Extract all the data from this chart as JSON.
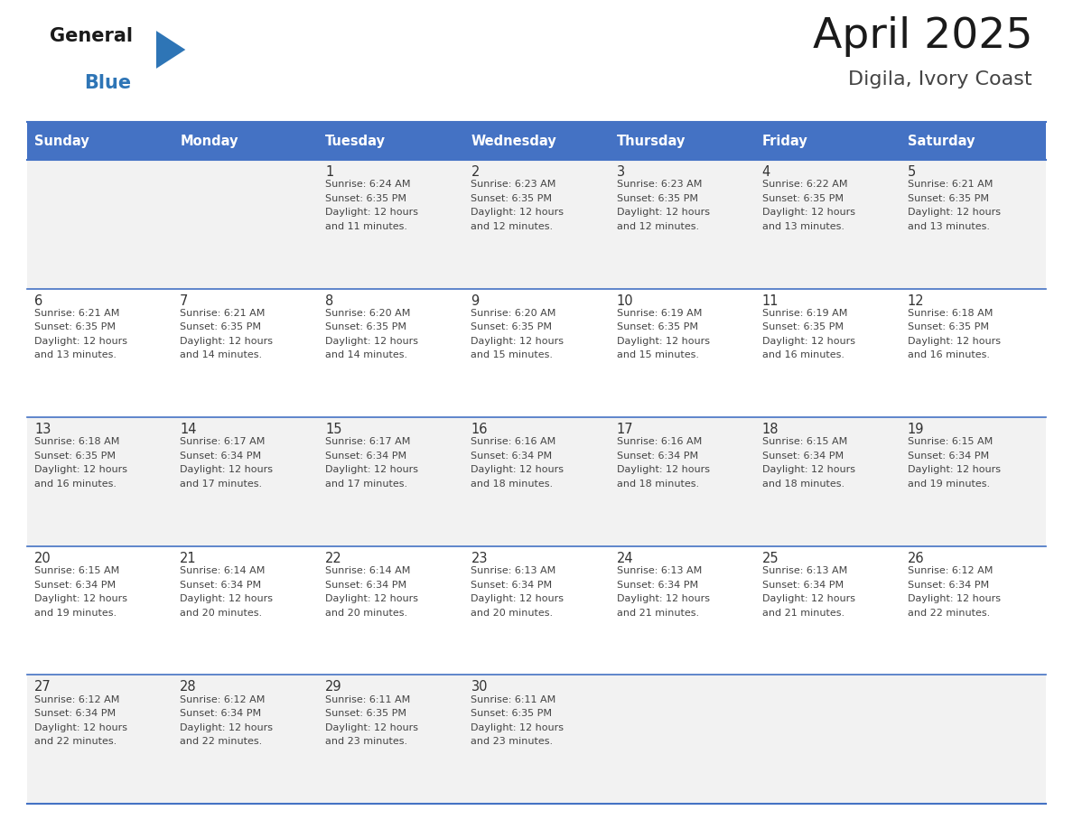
{
  "title": "April 2025",
  "subtitle": "Digila, Ivory Coast",
  "days_of_week": [
    "Sunday",
    "Monday",
    "Tuesday",
    "Wednesday",
    "Thursday",
    "Friday",
    "Saturday"
  ],
  "header_bg": "#4472C4",
  "header_text": "#FFFFFF",
  "cell_bg_even": "#F2F2F2",
  "cell_bg_odd": "#FFFFFF",
  "day_num_color": "#333333",
  "text_color": "#444444",
  "grid_color": "#4472C4",
  "row_line_color": "#4472C4",
  "title_color": "#1a1a1a",
  "subtitle_color": "#444444",
  "logo_general_color": "#1a1a1a",
  "logo_blue_color": "#2E75B6",
  "calendar": [
    [
      null,
      null,
      {
        "day": 1,
        "sunrise": "6:24 AM",
        "sunset": "6:35 PM",
        "daylight": "12 hours and 11 minutes."
      },
      {
        "day": 2,
        "sunrise": "6:23 AM",
        "sunset": "6:35 PM",
        "daylight": "12 hours and 12 minutes."
      },
      {
        "day": 3,
        "sunrise": "6:23 AM",
        "sunset": "6:35 PM",
        "daylight": "12 hours and 12 minutes."
      },
      {
        "day": 4,
        "sunrise": "6:22 AM",
        "sunset": "6:35 PM",
        "daylight": "12 hours and 13 minutes."
      },
      {
        "day": 5,
        "sunrise": "6:21 AM",
        "sunset": "6:35 PM",
        "daylight": "12 hours and 13 minutes."
      }
    ],
    [
      {
        "day": 6,
        "sunrise": "6:21 AM",
        "sunset": "6:35 PM",
        "daylight": "12 hours and 13 minutes."
      },
      {
        "day": 7,
        "sunrise": "6:21 AM",
        "sunset": "6:35 PM",
        "daylight": "12 hours and 14 minutes."
      },
      {
        "day": 8,
        "sunrise": "6:20 AM",
        "sunset": "6:35 PM",
        "daylight": "12 hours and 14 minutes."
      },
      {
        "day": 9,
        "sunrise": "6:20 AM",
        "sunset": "6:35 PM",
        "daylight": "12 hours and 15 minutes."
      },
      {
        "day": 10,
        "sunrise": "6:19 AM",
        "sunset": "6:35 PM",
        "daylight": "12 hours and 15 minutes."
      },
      {
        "day": 11,
        "sunrise": "6:19 AM",
        "sunset": "6:35 PM",
        "daylight": "12 hours and 16 minutes."
      },
      {
        "day": 12,
        "sunrise": "6:18 AM",
        "sunset": "6:35 PM",
        "daylight": "12 hours and 16 minutes."
      }
    ],
    [
      {
        "day": 13,
        "sunrise": "6:18 AM",
        "sunset": "6:35 PM",
        "daylight": "12 hours and 16 minutes."
      },
      {
        "day": 14,
        "sunrise": "6:17 AM",
        "sunset": "6:34 PM",
        "daylight": "12 hours and 17 minutes."
      },
      {
        "day": 15,
        "sunrise": "6:17 AM",
        "sunset": "6:34 PM",
        "daylight": "12 hours and 17 minutes."
      },
      {
        "day": 16,
        "sunrise": "6:16 AM",
        "sunset": "6:34 PM",
        "daylight": "12 hours and 18 minutes."
      },
      {
        "day": 17,
        "sunrise": "6:16 AM",
        "sunset": "6:34 PM",
        "daylight": "12 hours and 18 minutes."
      },
      {
        "day": 18,
        "sunrise": "6:15 AM",
        "sunset": "6:34 PM",
        "daylight": "12 hours and 18 minutes."
      },
      {
        "day": 19,
        "sunrise": "6:15 AM",
        "sunset": "6:34 PM",
        "daylight": "12 hours and 19 minutes."
      }
    ],
    [
      {
        "day": 20,
        "sunrise": "6:15 AM",
        "sunset": "6:34 PM",
        "daylight": "12 hours and 19 minutes."
      },
      {
        "day": 21,
        "sunrise": "6:14 AM",
        "sunset": "6:34 PM",
        "daylight": "12 hours and 20 minutes."
      },
      {
        "day": 22,
        "sunrise": "6:14 AM",
        "sunset": "6:34 PM",
        "daylight": "12 hours and 20 minutes."
      },
      {
        "day": 23,
        "sunrise": "6:13 AM",
        "sunset": "6:34 PM",
        "daylight": "12 hours and 20 minutes."
      },
      {
        "day": 24,
        "sunrise": "6:13 AM",
        "sunset": "6:34 PM",
        "daylight": "12 hours and 21 minutes."
      },
      {
        "day": 25,
        "sunrise": "6:13 AM",
        "sunset": "6:34 PM",
        "daylight": "12 hours and 21 minutes."
      },
      {
        "day": 26,
        "sunrise": "6:12 AM",
        "sunset": "6:34 PM",
        "daylight": "12 hours and 22 minutes."
      }
    ],
    [
      {
        "day": 27,
        "sunrise": "6:12 AM",
        "sunset": "6:34 PM",
        "daylight": "12 hours and 22 minutes."
      },
      {
        "day": 28,
        "sunrise": "6:12 AM",
        "sunset": "6:34 PM",
        "daylight": "12 hours and 22 minutes."
      },
      {
        "day": 29,
        "sunrise": "6:11 AM",
        "sunset": "6:35 PM",
        "daylight": "12 hours and 23 minutes."
      },
      {
        "day": 30,
        "sunrise": "6:11 AM",
        "sunset": "6:35 PM",
        "daylight": "12 hours and 23 minutes."
      },
      null,
      null,
      null
    ]
  ],
  "fig_width": 11.88,
  "fig_height": 9.18,
  "fig_dpi": 100
}
